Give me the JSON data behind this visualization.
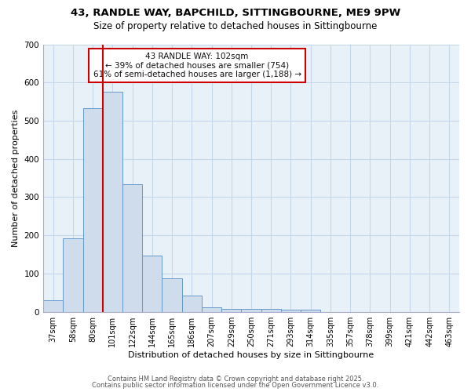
{
  "title1": "43, RANDLE WAY, BAPCHILD, SITTINGBOURNE, ME9 9PW",
  "title2": "Size of property relative to detached houses in Sittingbourne",
  "xlabel": "Distribution of detached houses by size in Sittingbourne",
  "ylabel": "Number of detached properties",
  "categories": [
    "37sqm",
    "58sqm",
    "80sqm",
    "101sqm",
    "122sqm",
    "144sqm",
    "165sqm",
    "186sqm",
    "207sqm",
    "229sqm",
    "250sqm",
    "271sqm",
    "293sqm",
    "314sqm",
    "335sqm",
    "357sqm",
    "378sqm",
    "399sqm",
    "421sqm",
    "442sqm",
    "463sqm"
  ],
  "values": [
    30,
    193,
    533,
    575,
    333,
    147,
    87,
    42,
    11,
    8,
    8,
    8,
    5,
    5,
    0,
    0,
    0,
    0,
    0,
    0,
    0
  ],
  "bar_color": "#cfdceb",
  "bar_edge_color": "#6699cc",
  "grid_color": "#c5d8eb",
  "bg_color": "#ffffff",
  "plot_bg_color": "#e8f0f8",
  "red_line_index": 3,
  "annotation_line1": "43 RANDLE WAY: 102sqm",
  "annotation_line2": "← 39% of detached houses are smaller (754)",
  "annotation_line3": "61% of semi-detached houses are larger (1,188) →",
  "annotation_color": "#cc0000",
  "annotation_text_color": "#111111",
  "ylim": [
    0,
    700
  ],
  "yticks": [
    0,
    100,
    200,
    300,
    400,
    500,
    600,
    700
  ],
  "footer1": "Contains HM Land Registry data © Crown copyright and database right 2025.",
  "footer2": "Contains public sector information licensed under the Open Government Licence v3.0.",
  "title1_fontsize": 9.5,
  "title2_fontsize": 8.5,
  "axis_label_fontsize": 8,
  "tick_fontsize": 7,
  "footer_fontsize": 6
}
